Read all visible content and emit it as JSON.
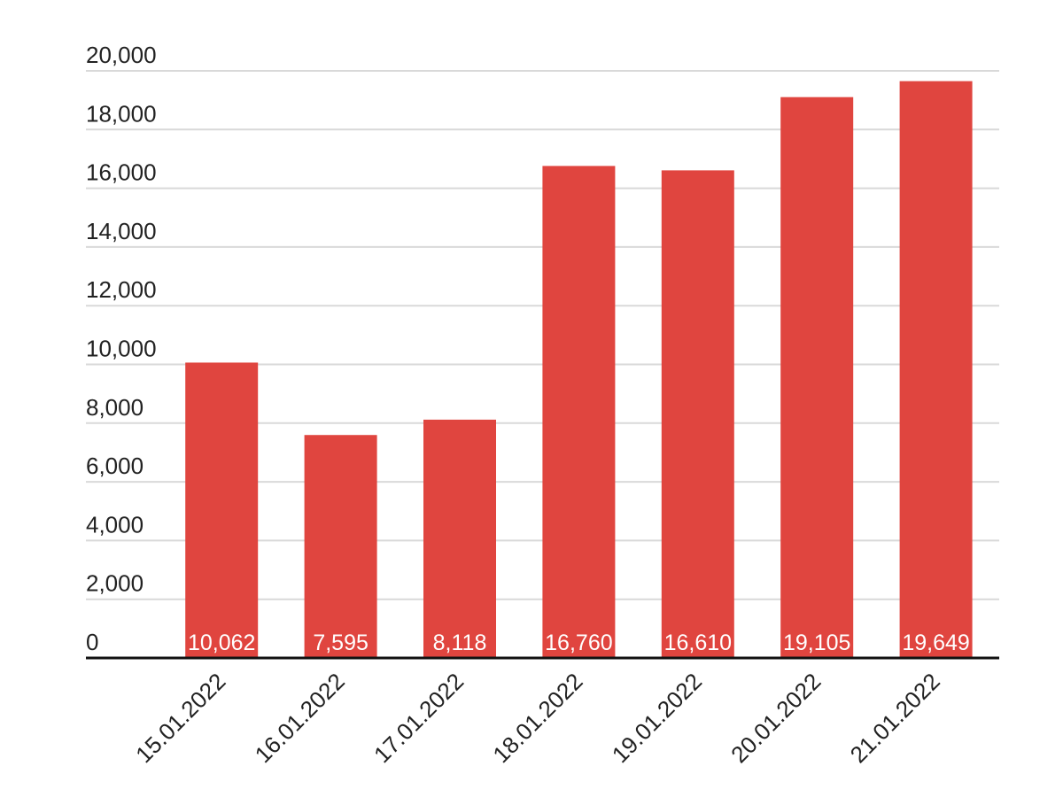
{
  "chart_data": {
    "type": "bar",
    "title": "",
    "xlabel": "",
    "ylabel": "",
    "categories": [
      "15.01.2022",
      "16.01.2022",
      "17.01.2022",
      "18.01.2022",
      "19.01.2022",
      "20.01.2022",
      "21.01.2022"
    ],
    "values": [
      10062,
      7595,
      8118,
      16760,
      16610,
      19105,
      19649
    ],
    "data_labels": [
      "10,062",
      "7,595",
      "8,118",
      "16,760",
      "16,610",
      "19,105",
      "19,649"
    ],
    "ylim": [
      0,
      20000
    ],
    "yticks": [
      0,
      2000,
      4000,
      6000,
      8000,
      10000,
      12000,
      14000,
      16000,
      18000,
      20000
    ],
    "ytick_labels": [
      "0",
      "2,000",
      "4,000",
      "6,000",
      "8,000",
      "10,000",
      "12,000",
      "14,000",
      "16,000",
      "18,000",
      "20,000"
    ],
    "grid": true,
    "legend": "none",
    "bar_color": "#e0453f",
    "grid_color": "#d9d9d9"
  }
}
